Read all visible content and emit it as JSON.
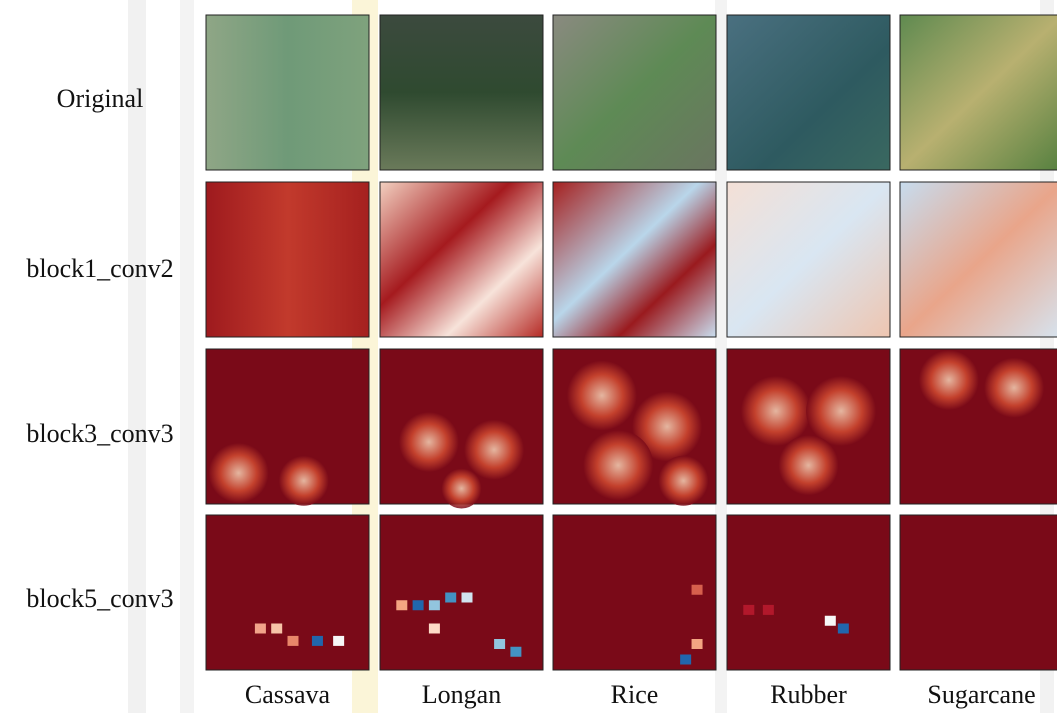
{
  "row_labels": [
    "Original",
    "block1_conv2",
    "block3_conv3",
    "block5_conv3"
  ],
  "column_labels": [
    "Cassava",
    "Longan",
    "Rice",
    "Rubber",
    "Sugarcane"
  ]
}
